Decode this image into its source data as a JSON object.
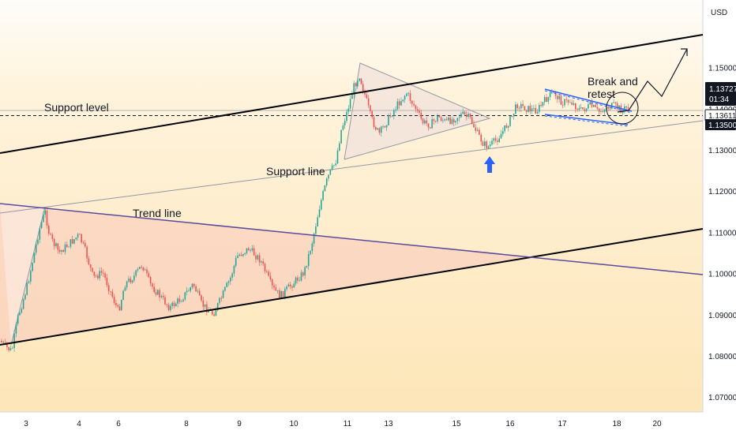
{
  "chart_data": {
    "type": "candlestick",
    "currency_label": "USD",
    "y_range": [
      1.0665,
      1.1665
    ],
    "price_ticks": [
      "1.15000",
      "1.14000",
      "1.13000",
      "1.12000",
      "1.11000",
      "1.10000",
      "1.09000",
      "1.08000",
      "1.07000"
    ],
    "price_tick_values": [
      1.15,
      1.14,
      1.13,
      1.12,
      1.11,
      1.1,
      1.09,
      1.08,
      1.07
    ],
    "time_ticks": [
      "3",
      "4",
      "6",
      "8",
      "9",
      "10",
      "11",
      "13",
      "15",
      "16",
      "17",
      "18",
      "20"
    ],
    "price_tags": {
      "last": {
        "value": "1.13727",
        "timer": "01:34",
        "price": 1.1372
      },
      "dashed_level": {
        "value": "1.13611",
        "price": 1.1361
      },
      "level": {
        "value": "1.13500",
        "price": 1.135
      }
    },
    "annotations": {
      "support_level": "Support level",
      "support_line": "Support line",
      "trend_line": "Trend line",
      "break_retest": [
        "Break and",
        "retest"
      ]
    },
    "colors": {
      "up": "#26a69a",
      "down": "#ef5350",
      "channel_line": "#000000",
      "trend_line": "#5b4a9e",
      "pennant_line": "#2962ff",
      "arrow": "#2962ff",
      "last_tag": "#131722",
      "background_top": "#fefefe",
      "background_bottom": "#fde6b8"
    }
  }
}
